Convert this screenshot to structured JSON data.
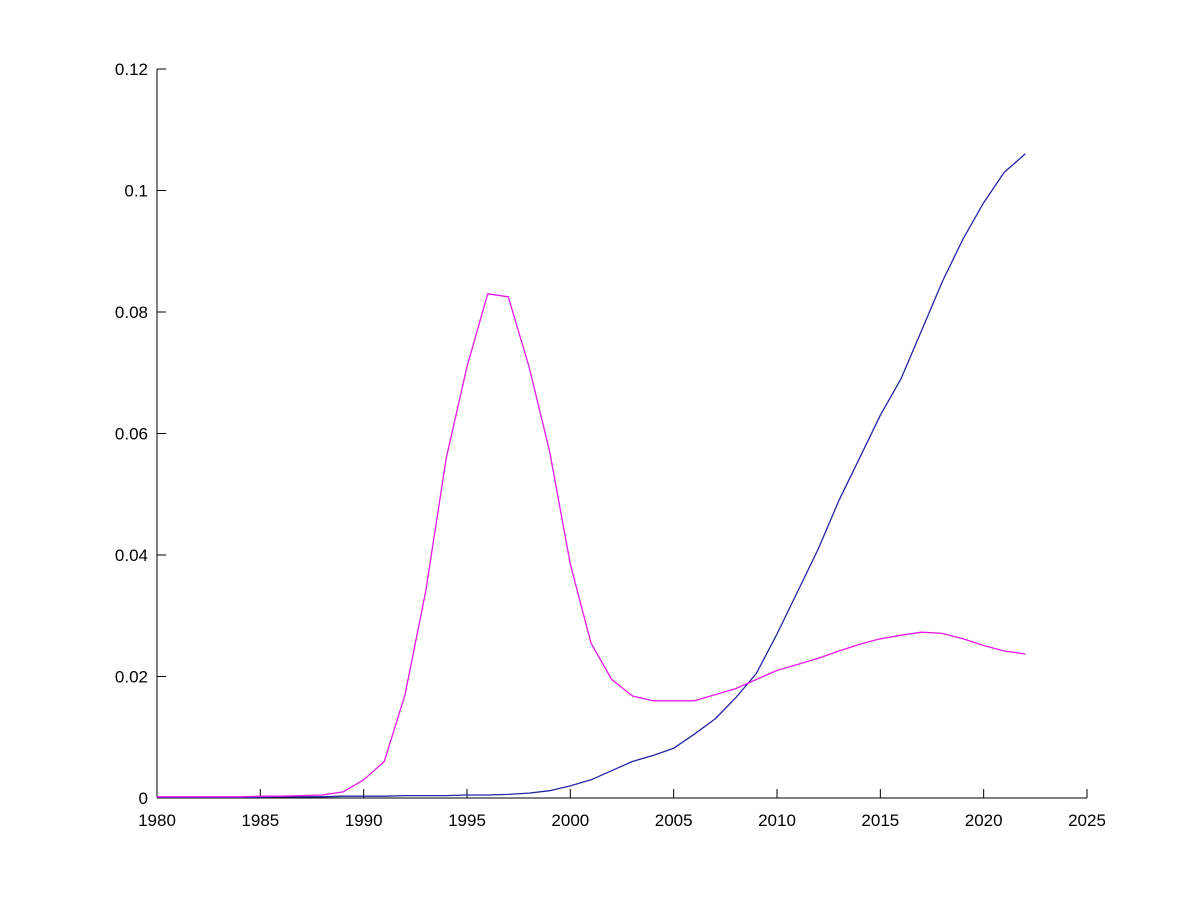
{
  "figure": {
    "background_color": "#ffffff",
    "title": "",
    "axis_color": "#000000",
    "tick_label_color": "#000000"
  },
  "chart_data": {
    "type": "line",
    "title": "",
    "xlabel": "",
    "ylabel": "",
    "grid": false,
    "legend": null,
    "box": "left-and-bottom-axes-only",
    "tick_direction": "in",
    "xlim": [
      1980,
      2025
    ],
    "ylim": [
      0,
      0.12
    ],
    "x_ticks": [
      1980,
      1985,
      1990,
      1995,
      2000,
      2005,
      2010,
      2015,
      2020,
      2025
    ],
    "x_tick_labels": [
      "1980",
      "1985",
      "1990",
      "1995",
      "2000",
      "2005",
      "2010",
      "2015",
      "2020",
      "2025"
    ],
    "y_ticks": [
      0,
      0.02,
      0.04,
      0.06,
      0.08,
      0.1,
      0.12
    ],
    "y_tick_labels": [
      "0",
      "0.02",
      "0.04",
      "0.06",
      "0.08",
      "0.1",
      "0.12"
    ],
    "x": [
      1980,
      1981,
      1982,
      1983,
      1984,
      1985,
      1986,
      1987,
      1988,
      1989,
      1990,
      1991,
      1992,
      1993,
      1994,
      1995,
      1996,
      1997,
      1998,
      1999,
      2000,
      2001,
      2002,
      2003,
      2004,
      2005,
      2006,
      2007,
      2008,
      2009,
      2010,
      2011,
      2012,
      2013,
      2014,
      2015,
      2016,
      2017,
      2018,
      2019,
      2020,
      2021,
      2022
    ],
    "series": [
      {
        "name": "dark-blue-line",
        "color": "#2424a3",
        "values": [
          0.0001,
          0.0001,
          0.0001,
          0.0001,
          0.0001,
          0.0001,
          0.0002,
          0.0002,
          0.0002,
          0.0003,
          0.0003,
          0.0003,
          0.0004,
          0.0004,
          0.0004,
          0.0005,
          0.0005,
          0.0006,
          0.0008,
          0.0012,
          0.002,
          0.003,
          0.0045,
          0.006,
          0.007,
          0.0082,
          0.0105,
          0.013,
          0.0165,
          0.0205,
          0.027,
          0.034,
          0.041,
          0.049,
          0.056,
          0.063,
          0.069,
          0.077,
          0.085,
          0.092,
          0.098,
          0.103,
          0.106
        ]
      },
      {
        "name": "magenta-line",
        "color": "#e619e6",
        "values": [
          0.0002,
          0.0002,
          0.0002,
          0.0002,
          0.0002,
          0.0003,
          0.0003,
          0.0004,
          0.0005,
          0.001,
          0.003,
          0.006,
          0.017,
          0.034,
          0.056,
          0.071,
          0.083,
          0.0825,
          0.071,
          0.057,
          0.0385,
          0.0255,
          0.0195,
          0.0168,
          0.016,
          0.016,
          0.016,
          0.017,
          0.018,
          0.0195,
          0.021,
          0.022,
          0.023,
          0.0242,
          0.0253,
          0.0262,
          0.0268,
          0.0273,
          0.0271,
          0.0262,
          0.0251,
          0.0242,
          0.0237
        ]
      }
    ],
    "annotations": {
      "magenta_peak": {
        "x": 1996.5,
        "y": 0.083
      },
      "magenta_trough": {
        "x": 2005,
        "y": 0.016
      },
      "magenta_second_peak": {
        "x": 2017,
        "y": 0.0273
      },
      "blue_end": {
        "x": 2022,
        "y": 0.106
      },
      "crossing_point": {
        "x": 2008.5,
        "y": 0.0185
      }
    }
  }
}
